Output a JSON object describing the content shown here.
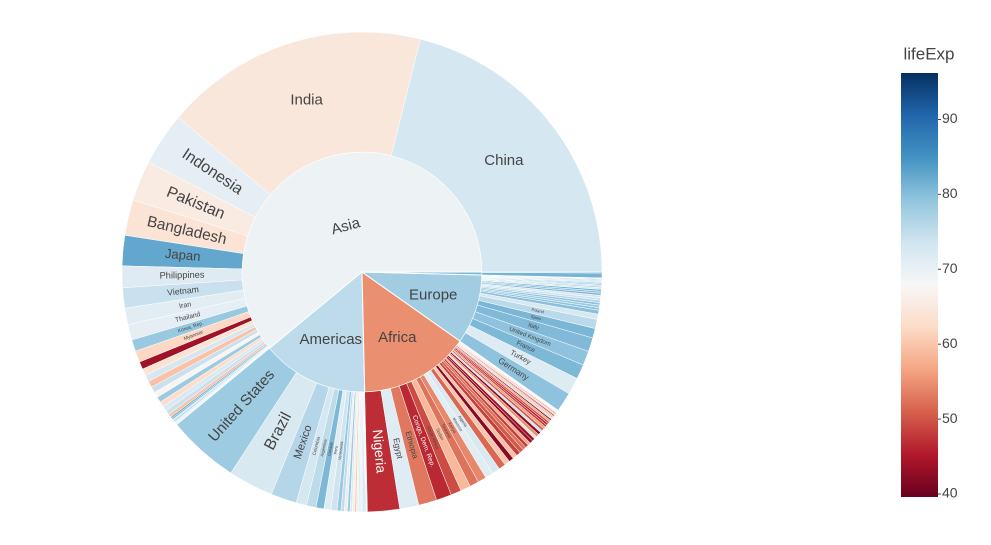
{
  "chart_data": {
    "type": "sunburst",
    "color_title": "lifeExp",
    "clim": [
      39.6,
      96.2
    ],
    "colorscale": [
      "#67001f",
      "#b2182b",
      "#d6604d",
      "#f4a582",
      "#fddbc7",
      "#f7f7f7",
      "#d1e5f0",
      "#92c5de",
      "#4393c3",
      "#2166ac",
      "#053061"
    ],
    "cticks": [
      40,
      50,
      60,
      70,
      80,
      90
    ],
    "groups": [
      {
        "name": "Asia",
        "lifeExp": 69.4,
        "children": [
          {
            "name": "China",
            "value": 1318.7,
            "lifeExp": 72.96
          },
          {
            "name": "India",
            "value": 1110.4,
            "lifeExp": 64.7
          },
          {
            "name": "Indonesia",
            "value": 223.5,
            "lifeExp": 70.65
          },
          {
            "name": "Pakistan",
            "value": 169.3,
            "lifeExp": 65.48
          },
          {
            "name": "Bangladesh",
            "value": 150.4,
            "lifeExp": 64.06
          },
          {
            "name": "Japan",
            "value": 127.5,
            "lifeExp": 82.6
          },
          {
            "name": "Philippines",
            "value": 91.1,
            "lifeExp": 71.69
          },
          {
            "name": "Vietnam",
            "value": 85.3,
            "lifeExp": 74.25
          },
          {
            "name": "Iran",
            "value": 69.5,
            "lifeExp": 70.96
          },
          {
            "name": "Thailand",
            "value": 65.1,
            "lifeExp": 70.6
          },
          {
            "name": "Korea, Rep.",
            "value": 49.0,
            "lifeExp": 78.6
          },
          {
            "name": "Myanmar",
            "value": 47.8,
            "lifeExp": 62.07
          },
          {
            "name": null,
            "value": 31.9,
            "lifeExp": 43.83
          },
          {
            "name": null,
            "value": 28.9,
            "lifeExp": 63.79
          },
          {
            "name": null,
            "value": 27.6,
            "lifeExp": 72.78
          },
          {
            "name": null,
            "value": 27.5,
            "lifeExp": 59.55
          },
          {
            "name": null,
            "value": 24.8,
            "lifeExp": 74.24
          },
          {
            "name": null,
            "value": 23.3,
            "lifeExp": 67.3
          },
          {
            "name": null,
            "value": 23.2,
            "lifeExp": 78.4
          },
          {
            "name": null,
            "value": 22.2,
            "lifeExp": 62.7
          },
          {
            "name": null,
            "value": 20.4,
            "lifeExp": 72.4
          },
          {
            "name": null,
            "value": 19.3,
            "lifeExp": 74.1
          },
          {
            "name": null,
            "value": 14.1,
            "lifeExp": 59.7
          },
          {
            "name": null,
            "value": 7.0,
            "lifeExp": 82.2
          },
          {
            "name": null,
            "value": 6.4,
            "lifeExp": 80.7
          },
          {
            "name": null,
            "value": 6.1,
            "lifeExp": 72.5
          },
          {
            "name": null,
            "value": 4.6,
            "lifeExp": 80.0
          },
          {
            "name": null,
            "value": 4.0,
            "lifeExp": 73.4
          },
          {
            "name": null,
            "value": 4.0,
            "lifeExp": 72.0
          },
          {
            "name": null,
            "value": 3.2,
            "lifeExp": 75.6
          },
          {
            "name": null,
            "value": 2.9,
            "lifeExp": 66.8
          },
          {
            "name": null,
            "value": 2.5,
            "lifeExp": 77.6
          }
        ]
      },
      {
        "name": "Americas",
        "lifeExp": 75.4,
        "children": [
          {
            "name": "United States",
            "value": 301.1,
            "lifeExp": 78.2
          },
          {
            "name": "Brazil",
            "value": 190.0,
            "lifeExp": 72.4
          },
          {
            "name": "Mexico",
            "value": 108.7,
            "lifeExp": 76.2
          },
          {
            "name": "Colombia",
            "value": 44.2,
            "lifeExp": 72.9
          },
          {
            "name": "Argentina",
            "value": 40.3,
            "lifeExp": 75.3
          },
          {
            "name": "Canada",
            "value": 33.4,
            "lifeExp": 80.7
          },
          {
            "name": "Peru",
            "value": 28.7,
            "lifeExp": 71.4
          },
          {
            "name": "Venezuela",
            "value": 26.1,
            "lifeExp": 73.7
          },
          {
            "name": null,
            "value": 16.3,
            "lifeExp": 78.6
          },
          {
            "name": null,
            "value": 13.8,
            "lifeExp": 75.0
          },
          {
            "name": null,
            "value": 12.6,
            "lifeExp": 70.3
          },
          {
            "name": null,
            "value": 11.4,
            "lifeExp": 78.3
          },
          {
            "name": null,
            "value": 9.3,
            "lifeExp": 72.2
          },
          {
            "name": null,
            "value": 9.1,
            "lifeExp": 65.6
          },
          {
            "name": null,
            "value": 8.5,
            "lifeExp": 60.9
          },
          {
            "name": null,
            "value": 7.5,
            "lifeExp": 70.2
          },
          {
            "name": null,
            "value": 6.9,
            "lifeExp": 71.9
          },
          {
            "name": null,
            "value": 6.7,
            "lifeExp": 71.8
          },
          {
            "name": null,
            "value": 5.7,
            "lifeExp": 72.9
          },
          {
            "name": null,
            "value": 4.1,
            "lifeExp": 78.8
          },
          {
            "name": null,
            "value": 3.9,
            "lifeExp": 78.7
          },
          {
            "name": null,
            "value": 3.4,
            "lifeExp": 76.4
          },
          {
            "name": null,
            "value": 3.2,
            "lifeExp": 75.5
          },
          {
            "name": null,
            "value": 2.8,
            "lifeExp": 72.6
          },
          {
            "name": null,
            "value": 1.1,
            "lifeExp": 69.8
          }
        ]
      },
      {
        "name": "Africa",
        "lifeExp": 54.8,
        "children": [
          {
            "name": "Nigeria",
            "value": 135.0,
            "lifeExp": 46.9
          },
          {
            "name": "Egypt",
            "value": 80.3,
            "lifeExp": 71.3
          },
          {
            "name": "Ethiopia",
            "value": 76.5,
            "lifeExp": 52.9
          },
          {
            "name": "Congo, Dem. Rep.",
            "value": 64.6,
            "lifeExp": 46.5
          },
          {
            "name": "South Africa",
            "value": 44.0,
            "lifeExp": 49.3
          },
          {
            "name": "Sudan",
            "value": 42.3,
            "lifeExp": 58.6
          },
          {
            "name": "Tanzania",
            "value": 38.1,
            "lifeExp": 52.5
          },
          {
            "name": "Kenya",
            "value": 35.6,
            "lifeExp": 54.1
          },
          {
            "name": "Morocco",
            "value": 33.8,
            "lifeExp": 71.2
          },
          {
            "name": "Algeria",
            "value": 33.3,
            "lifeExp": 72.3
          },
          {
            "name": null,
            "value": 29.2,
            "lifeExp": 51.5
          },
          {
            "name": null,
            "value": 22.9,
            "lifeExp": 60.0
          },
          {
            "name": null,
            "value": 20.0,
            "lifeExp": 42.1
          },
          {
            "name": null,
            "value": 19.2,
            "lifeExp": 59.4
          },
          {
            "name": null,
            "value": 18.0,
            "lifeExp": 48.3
          },
          {
            "name": null,
            "value": 17.7,
            "lifeExp": 50.4
          },
          {
            "name": null,
            "value": 14.3,
            "lifeExp": 52.3
          },
          {
            "name": null,
            "value": 13.3,
            "lifeExp": 48.3
          },
          {
            "name": null,
            "value": 12.9,
            "lifeExp": 56.9
          },
          {
            "name": null,
            "value": 12.4,
            "lifeExp": 42.7
          },
          {
            "name": null,
            "value": 12.3,
            "lifeExp": 43.5
          },
          {
            "name": null,
            "value": 12.3,
            "lifeExp": 63.1
          },
          {
            "name": null,
            "value": 12.0,
            "lifeExp": 54.5
          },
          {
            "name": null,
            "value": 11.7,
            "lifeExp": 42.4
          },
          {
            "name": null,
            "value": 10.3,
            "lifeExp": 73.9
          },
          {
            "name": null,
            "value": 10.2,
            "lifeExp": 50.7
          },
          {
            "name": null,
            "value": 9.9,
            "lifeExp": 56.0
          },
          {
            "name": null,
            "value": 9.1,
            "lifeExp": 48.2
          },
          {
            "name": null,
            "value": 8.9,
            "lifeExp": 46.2
          },
          {
            "name": null,
            "value": 8.4,
            "lifeExp": 49.6
          },
          {
            "name": null,
            "value": 8.1,
            "lifeExp": 56.7
          },
          {
            "name": null,
            "value": 6.1,
            "lifeExp": 42.6
          },
          {
            "name": null,
            "value": 6.0,
            "lifeExp": 74.0
          },
          {
            "name": null,
            "value": 5.7,
            "lifeExp": 58.4
          },
          {
            "name": null,
            "value": 4.9,
            "lifeExp": 58.0
          },
          {
            "name": null,
            "value": 4.4,
            "lifeExp": 44.7
          },
          {
            "name": null,
            "value": 3.8,
            "lifeExp": 55.3
          },
          {
            "name": null,
            "value": 3.3,
            "lifeExp": 64.2
          },
          {
            "name": null,
            "value": 3.2,
            "lifeExp": 45.7
          },
          {
            "name": null,
            "value": 2.1,
            "lifeExp": 52.9
          },
          {
            "name": null,
            "value": 2.0,
            "lifeExp": 42.6
          },
          {
            "name": null,
            "value": 1.7,
            "lifeExp": 59.4
          },
          {
            "name": null,
            "value": 1.6,
            "lifeExp": 50.7
          },
          {
            "name": null,
            "value": 1.5,
            "lifeExp": 56.7
          },
          {
            "name": null,
            "value": 1.5,
            "lifeExp": 46.4
          },
          {
            "name": null,
            "value": 1.3,
            "lifeExp": 72.8
          },
          {
            "name": null,
            "value": 1.1,
            "lifeExp": 39.6
          },
          {
            "name": null,
            "value": 0.8,
            "lifeExp": 76.4
          },
          {
            "name": null,
            "value": 0.7,
            "lifeExp": 65.2
          },
          {
            "name": null,
            "value": 0.55,
            "lifeExp": 51.6
          },
          {
            "name": null,
            "value": 0.5,
            "lifeExp": 54.8
          }
        ]
      },
      {
        "name": "Europe",
        "lifeExp": 77.9,
        "children": [
          {
            "name": "Germany",
            "value": 82.4,
            "lifeExp": 79.4
          },
          {
            "name": "Turkey",
            "value": 71.2,
            "lifeExp": 71.8
          },
          {
            "name": "France",
            "value": 61.1,
            "lifeExp": 80.7
          },
          {
            "name": "United Kingdom",
            "value": 60.8,
            "lifeExp": 79.4
          },
          {
            "name": "Italy",
            "value": 58.1,
            "lifeExp": 80.5
          },
          {
            "name": "Spain",
            "value": 40.4,
            "lifeExp": 80.9
          },
          {
            "name": "Poland",
            "value": 38.5,
            "lifeExp": 75.6
          },
          {
            "name": null,
            "value": 22.3,
            "lifeExp": 72.5
          },
          {
            "name": null,
            "value": 16.6,
            "lifeExp": 79.8
          },
          {
            "name": null,
            "value": 10.7,
            "lifeExp": 79.5
          },
          {
            "name": null,
            "value": 10.6,
            "lifeExp": 78.1
          },
          {
            "name": null,
            "value": 10.4,
            "lifeExp": 79.4
          },
          {
            "name": null,
            "value": 10.2,
            "lifeExp": 76.5
          },
          {
            "name": null,
            "value": 10.2,
            "lifeExp": 74.0
          },
          {
            "name": null,
            "value": 10.0,
            "lifeExp": 73.3
          },
          {
            "name": null,
            "value": 9.0,
            "lifeExp": 80.9
          },
          {
            "name": null,
            "value": 8.2,
            "lifeExp": 79.8
          },
          {
            "name": null,
            "value": 7.6,
            "lifeExp": 81.7
          },
          {
            "name": null,
            "value": 7.3,
            "lifeExp": 73.0
          },
          {
            "name": null,
            "value": 5.5,
            "lifeExp": 78.3
          },
          {
            "name": null,
            "value": 5.4,
            "lifeExp": 74.7
          },
          {
            "name": null,
            "value": 5.2,
            "lifeExp": 79.3
          },
          {
            "name": null,
            "value": 4.6,
            "lifeExp": 80.2
          },
          {
            "name": null,
            "value": 4.6,
            "lifeExp": 74.9
          },
          {
            "name": null,
            "value": 4.5,
            "lifeExp": 75.7
          },
          {
            "name": null,
            "value": 4.1,
            "lifeExp": 78.9
          },
          {
            "name": null,
            "value": 3.6,
            "lifeExp": 76.4
          },
          {
            "name": null,
            "value": 2.0,
            "lifeExp": 77.9
          },
          {
            "name": null,
            "value": 0.7,
            "lifeExp": 74.5
          },
          {
            "name": null,
            "value": 0.3,
            "lifeExp": 81.8
          }
        ]
      },
      {
        "name": null,
        "lifeExp": 80.7,
        "children": [
          {
            "name": null,
            "value": 20.4,
            "lifeExp": 81.2
          },
          {
            "name": null,
            "value": 4.1,
            "lifeExp": 80.2
          }
        ]
      }
    ]
  }
}
